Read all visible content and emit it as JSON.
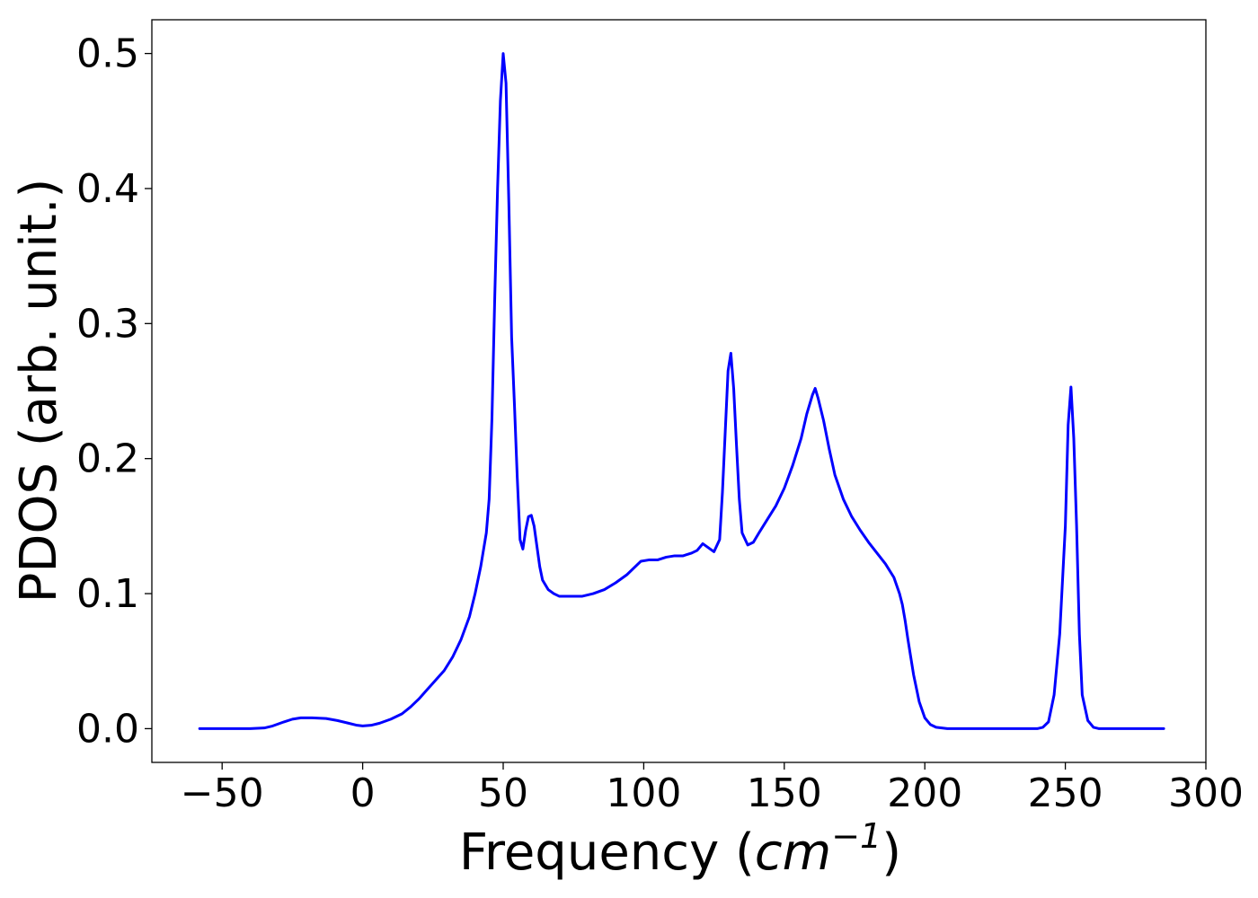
{
  "chart_data": {
    "type": "line",
    "title": "",
    "xlabel_prefix": "Frequency (",
    "xlabel_math_base": "cm",
    "xlabel_math_exp": "−1",
    "xlabel_suffix": ")",
    "ylabel": "PDOS (arb. unit.)",
    "xlim": [
      -75,
      300
    ],
    "ylim": [
      -0.025,
      0.525
    ],
    "grid": false,
    "legend": "none",
    "xticks": [
      -50,
      0,
      50,
      100,
      150,
      200,
      250,
      300
    ],
    "xtick_labels": [
      "−50",
      "0",
      "50",
      "100",
      "150",
      "200",
      "250",
      "300"
    ],
    "yticks": [
      0.0,
      0.1,
      0.2,
      0.3,
      0.4,
      0.5
    ],
    "ytick_labels": [
      "0.0",
      "0.1",
      "0.2",
      "0.3",
      "0.4",
      "0.5"
    ],
    "series": [
      {
        "color": "#0000ff",
        "points": [
          [
            -58,
            0.0
          ],
          [
            -40,
            0.0
          ],
          [
            -35,
            0.0005
          ],
          [
            -32,
            0.002
          ],
          [
            -28,
            0.005
          ],
          [
            -25,
            0.007
          ],
          [
            -22,
            0.008
          ],
          [
            -18,
            0.008
          ],
          [
            -13,
            0.0075
          ],
          [
            -9,
            0.006
          ],
          [
            -5,
            0.004
          ],
          [
            -2,
            0.0025
          ],
          [
            0,
            0.002
          ],
          [
            3,
            0.0025
          ],
          [
            6,
            0.004
          ],
          [
            10,
            0.007
          ],
          [
            14,
            0.011
          ],
          [
            17,
            0.016
          ],
          [
            20,
            0.022
          ],
          [
            23,
            0.029
          ],
          [
            26,
            0.036
          ],
          [
            29,
            0.043
          ],
          [
            32,
            0.053
          ],
          [
            35,
            0.066
          ],
          [
            38,
            0.083
          ],
          [
            40,
            0.1
          ],
          [
            42,
            0.12
          ],
          [
            44,
            0.145
          ],
          [
            45,
            0.17
          ],
          [
            46,
            0.23
          ],
          [
            47,
            0.32
          ],
          [
            48,
            0.4
          ],
          [
            49,
            0.465
          ],
          [
            50,
            0.5
          ],
          [
            51,
            0.478
          ],
          [
            52,
            0.39
          ],
          [
            53,
            0.29
          ],
          [
            54,
            0.24
          ],
          [
            55,
            0.186
          ],
          [
            56,
            0.14
          ],
          [
            57,
            0.133
          ],
          [
            58,
            0.147
          ],
          [
            59,
            0.157
          ],
          [
            60,
            0.158
          ],
          [
            61,
            0.15
          ],
          [
            62,
            0.135
          ],
          [
            63,
            0.12
          ],
          [
            64,
            0.11
          ],
          [
            66,
            0.103
          ],
          [
            68,
            0.1
          ],
          [
            70,
            0.098
          ],
          [
            74,
            0.098
          ],
          [
            78,
            0.098
          ],
          [
            82,
            0.1
          ],
          [
            86,
            0.103
          ],
          [
            90,
            0.108
          ],
          [
            94,
            0.114
          ],
          [
            97,
            0.12
          ],
          [
            99,
            0.124
          ],
          [
            102,
            0.125
          ],
          [
            105,
            0.125
          ],
          [
            108,
            0.127
          ],
          [
            111,
            0.128
          ],
          [
            114,
            0.128
          ],
          [
            117,
            0.13
          ],
          [
            119,
            0.132
          ],
          [
            121,
            0.137
          ],
          [
            123,
            0.134
          ],
          [
            125,
            0.131
          ],
          [
            127,
            0.14
          ],
          [
            128,
            0.175
          ],
          [
            129,
            0.22
          ],
          [
            130,
            0.265
          ],
          [
            131,
            0.278
          ],
          [
            132,
            0.252
          ],
          [
            133,
            0.21
          ],
          [
            134,
            0.17
          ],
          [
            135,
            0.145
          ],
          [
            137,
            0.136
          ],
          [
            139,
            0.138
          ],
          [
            141,
            0.145
          ],
          [
            144,
            0.155
          ],
          [
            147,
            0.165
          ],
          [
            150,
            0.178
          ],
          [
            153,
            0.195
          ],
          [
            156,
            0.215
          ],
          [
            158,
            0.233
          ],
          [
            160,
            0.247
          ],
          [
            161,
            0.252
          ],
          [
            162,
            0.245
          ],
          [
            164,
            0.228
          ],
          [
            166,
            0.207
          ],
          [
            168,
            0.188
          ],
          [
            171,
            0.17
          ],
          [
            174,
            0.157
          ],
          [
            177,
            0.147
          ],
          [
            180,
            0.138
          ],
          [
            183,
            0.13
          ],
          [
            186,
            0.122
          ],
          [
            189,
            0.112
          ],
          [
            191,
            0.1
          ],
          [
            192,
            0.092
          ],
          [
            193,
            0.08
          ],
          [
            194,
            0.066
          ],
          [
            195,
            0.053
          ],
          [
            196,
            0.04
          ],
          [
            198,
            0.02
          ],
          [
            200,
            0.008
          ],
          [
            202,
            0.003
          ],
          [
            204,
            0.001
          ],
          [
            208,
            0.0
          ],
          [
            220,
            0.0
          ],
          [
            235,
            0.0
          ],
          [
            240,
            0.0
          ],
          [
            242,
            0.001
          ],
          [
            244,
            0.005
          ],
          [
            246,
            0.025
          ],
          [
            248,
            0.07
          ],
          [
            250,
            0.15
          ],
          [
            251,
            0.225
          ],
          [
            252,
            0.253
          ],
          [
            253,
            0.215
          ],
          [
            254,
            0.15
          ],
          [
            255,
            0.07
          ],
          [
            256,
            0.025
          ],
          [
            258,
            0.006
          ],
          [
            260,
            0.001
          ],
          [
            262,
            0.0
          ],
          [
            270,
            0.0
          ],
          [
            285,
            0.0
          ]
        ]
      }
    ]
  }
}
